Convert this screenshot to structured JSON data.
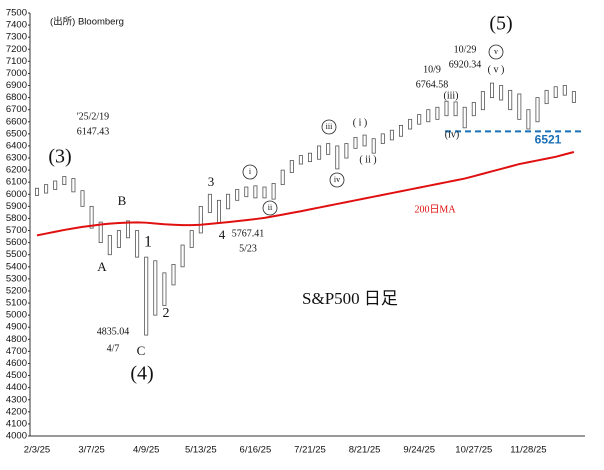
{
  "chart_data": {
    "type": "candlestick",
    "title": "S&P500 日足",
    "source": "(出所) Bloomberg",
    "categories": [
      "2/3/25",
      null,
      null,
      null,
      null,
      null,
      "3/7/25",
      null,
      null,
      null,
      null,
      null,
      "4/9/25",
      null,
      null,
      null,
      null,
      null,
      "5/13/25",
      null,
      null,
      null,
      null,
      null,
      "6/16/25",
      null,
      null,
      null,
      null,
      null,
      "7/21/25",
      null,
      null,
      null,
      null,
      null,
      "8/21/25",
      null,
      null,
      null,
      null,
      null,
      "9/24/25",
      null,
      null,
      null,
      null,
      null,
      "10/27/25",
      null,
      null,
      null,
      null,
      null,
      "11/28/25",
      null,
      null,
      null,
      null,
      null
    ],
    "high": [
      6050,
      6080,
      6110,
      6147,
      6130,
      6030,
      5900,
      5770,
      5660,
      5700,
      5780,
      5700,
      5480,
      5450,
      5350,
      5420,
      5580,
      5700,
      5900,
      6000,
      5950,
      6000,
      6040,
      6060,
      6070,
      6060,
      6090,
      6200,
      6280,
      6320,
      6340,
      6400,
      6420,
      6400,
      6420,
      6470,
      6490,
      6460,
      6500,
      6530,
      6570,
      6620,
      6660,
      6700,
      6720,
      6770,
      6764,
      6720,
      6760,
      6850,
      6920,
      6900,
      6860,
      6830,
      6700,
      6800,
      6860,
      6890,
      6900,
      6850
    ],
    "low": [
      5990,
      6010,
      6040,
      6080,
      6020,
      5900,
      5720,
      5600,
      5500,
      5560,
      5640,
      5480,
      4835,
      5000,
      5080,
      5250,
      5400,
      5560,
      5680,
      5850,
      5767,
      5880,
      5950,
      5980,
      5970,
      5970,
      5960,
      6080,
      6180,
      6250,
      6270,
      6290,
      6330,
      6210,
      6300,
      6380,
      6400,
      6340,
      6420,
      6450,
      6480,
      6540,
      6580,
      6600,
      6620,
      6650,
      6650,
      6550,
      6650,
      6700,
      6800,
      6780,
      6700,
      6620,
      6540,
      6600,
      6750,
      6800,
      6820,
      6760
    ],
    "color": "#555555",
    "series": [
      {
        "name": "200日MA",
        "color": "#e01010",
        "values": [
          5660,
          5675,
          5690,
          5705,
          5718,
          5730,
          5740,
          5750,
          5757,
          5762,
          5766,
          5768,
          5765,
          5758,
          5752,
          5748,
          5745,
          5745,
          5748,
          5755,
          5762,
          5770,
          5778,
          5786,
          5795,
          5805,
          5818,
          5832,
          5846,
          5860,
          5875,
          5890,
          5905,
          5920,
          5935,
          5950,
          5965,
          5980,
          5995,
          6010,
          6025,
          6040,
          6055,
          6070,
          6085,
          6100,
          6115,
          6130,
          6150,
          6170,
          6190,
          6210,
          6230,
          6250,
          6265,
          6280,
          6295,
          6310,
          6330,
          6350
        ]
      }
    ],
    "reference_line": {
      "value": 6521,
      "label": "6521",
      "color": "#1a6fb5"
    },
    "annotations": [
      "(3)",
      "'25/2/19",
      "6147.43",
      "A",
      "B",
      "1",
      "2",
      "C",
      "(4)",
      "4835.04",
      "4/7",
      "3",
      "4",
      "5767.41",
      "5/23",
      "i",
      "ii",
      "iii",
      "iv",
      "( i )",
      "( ii )",
      "(iii)",
      "(iv)",
      "10/9",
      "6764.58",
      "10/29",
      "6920.34",
      "v",
      "( v )",
      "(5)"
    ],
    "ylim": [
      4000,
      7500
    ],
    "yticks": [
      4000,
      4100,
      4200,
      4300,
      4400,
      4500,
      4600,
      4700,
      4800,
      4900,
      5000,
      5100,
      5200,
      5300,
      5400,
      5500,
      5600,
      5700,
      5800,
      5900,
      6000,
      6100,
      6200,
      6300,
      6400,
      6500,
      6600,
      6700,
      6800,
      6900,
      7000,
      7100,
      7200,
      7300,
      7400,
      7500
    ]
  }
}
